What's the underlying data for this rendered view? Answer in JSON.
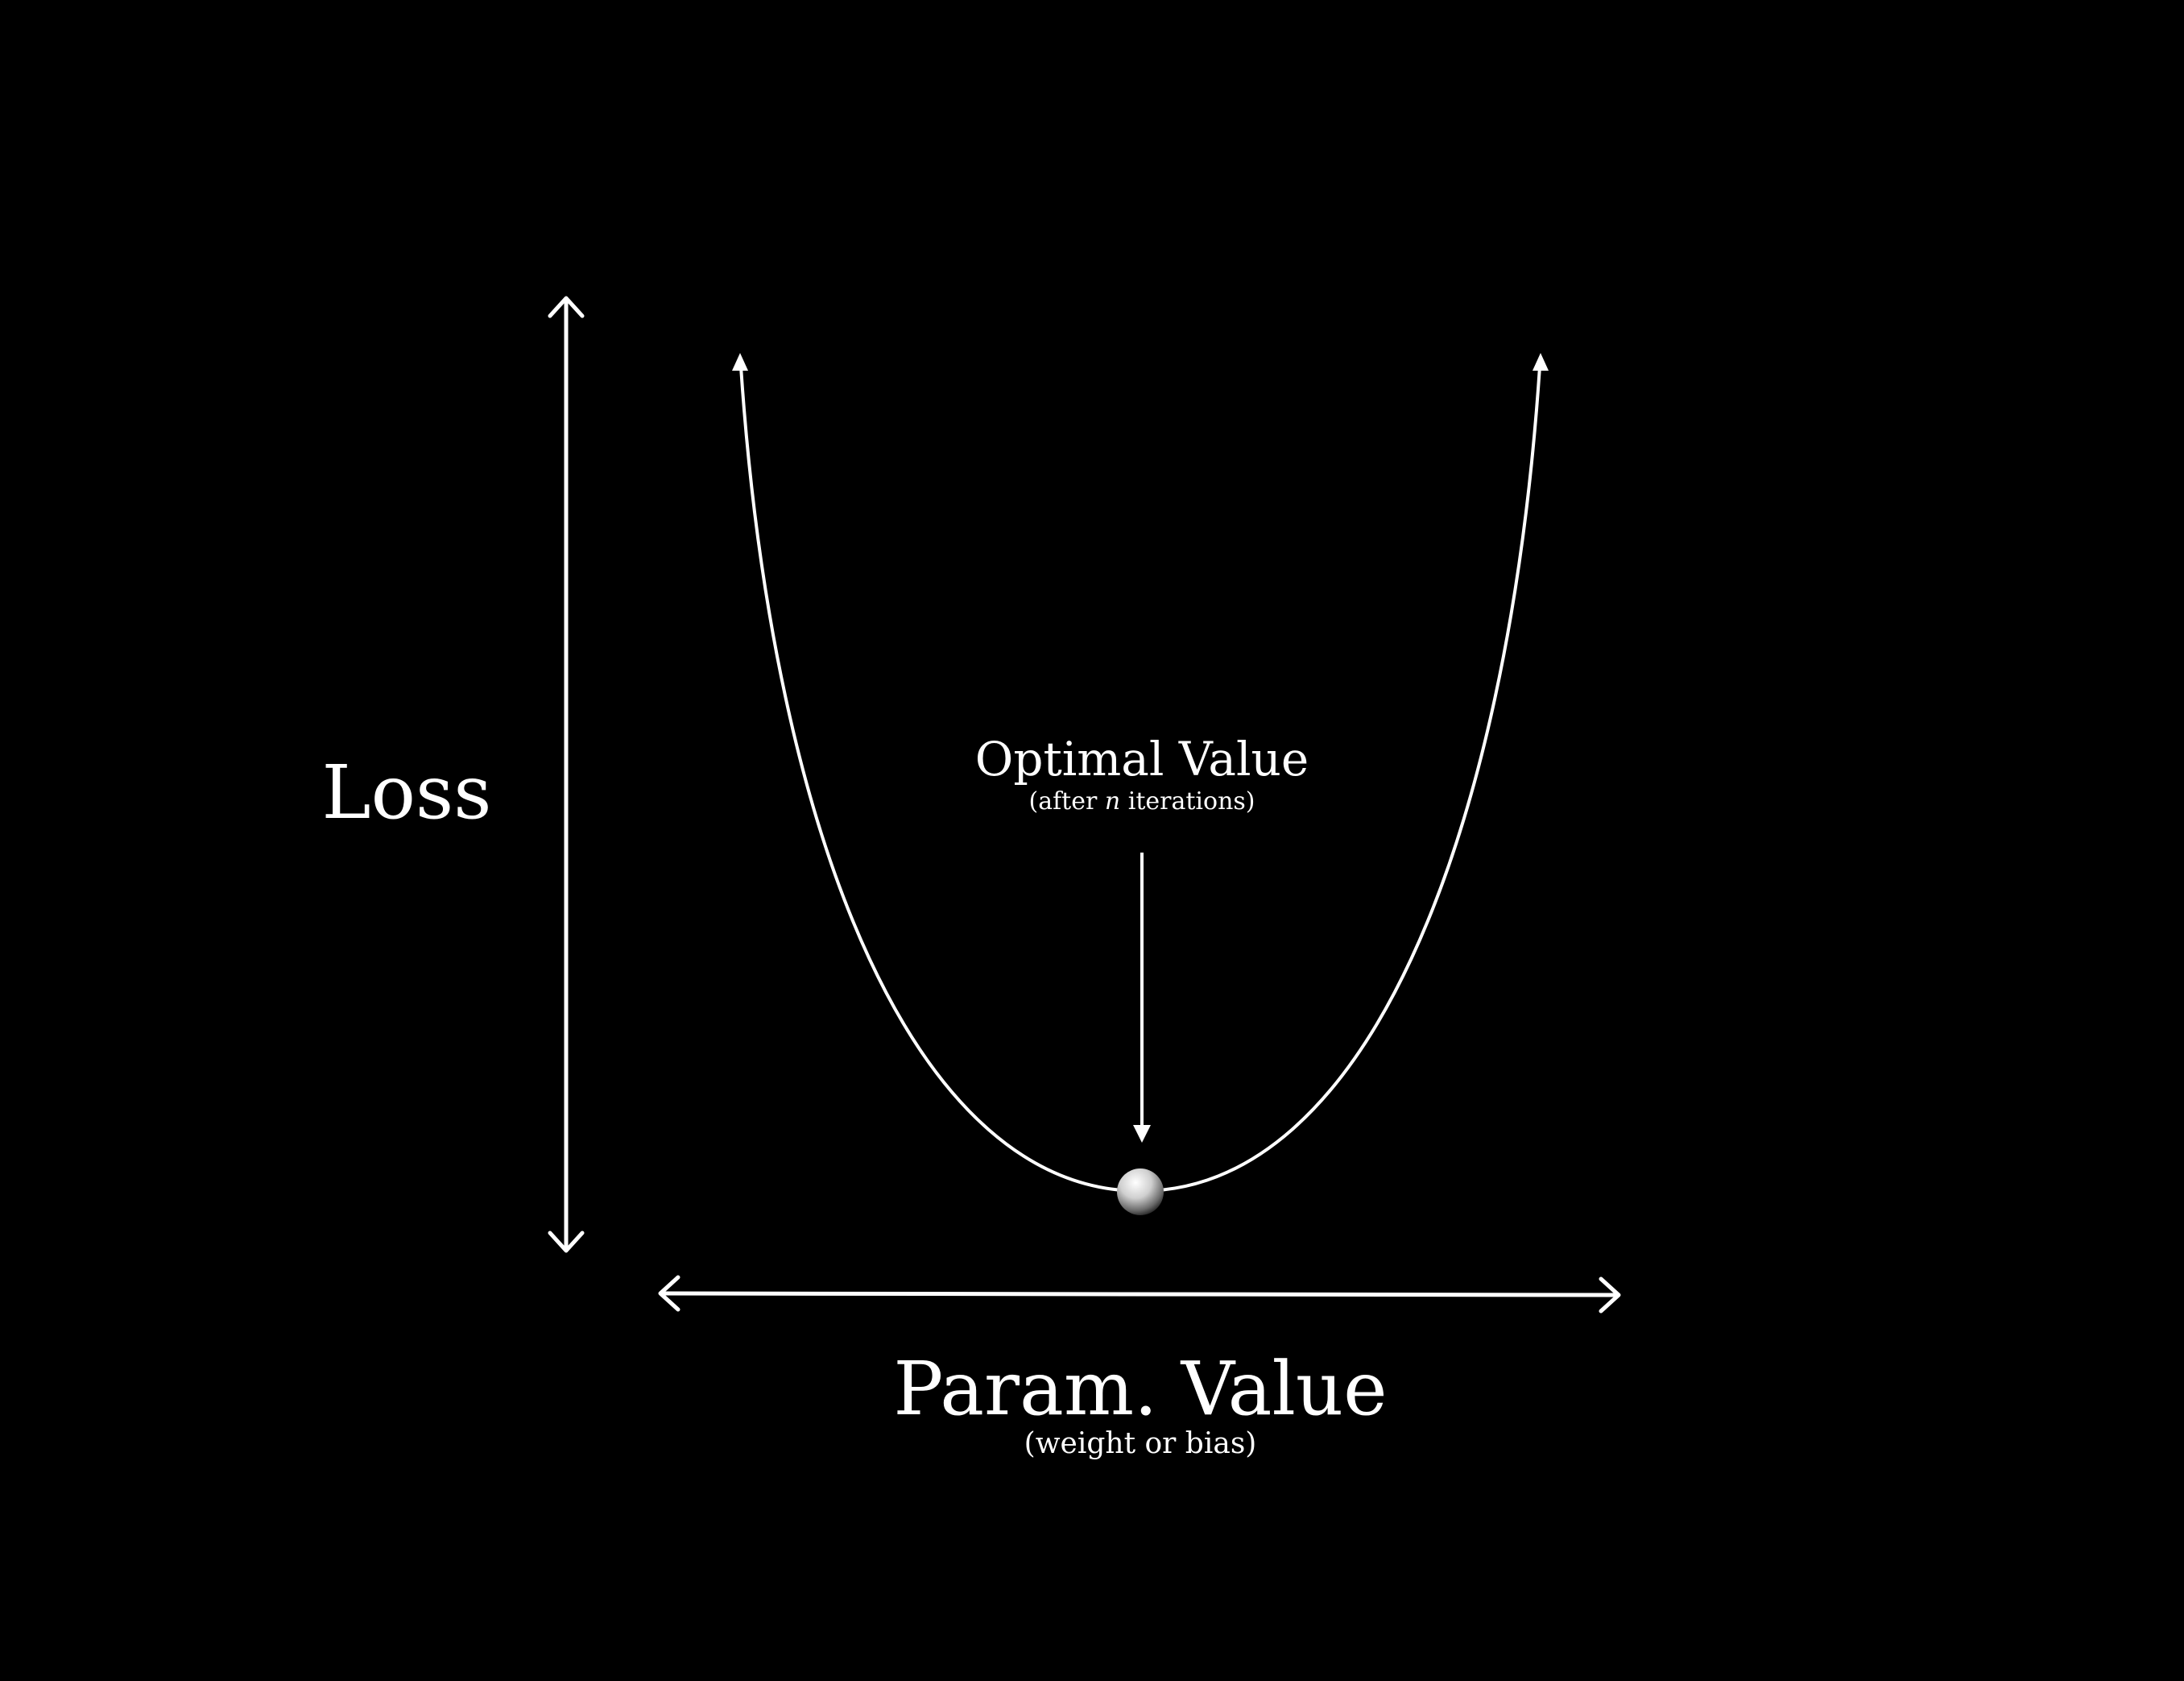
{
  "diagram": {
    "background_color": "#000000",
    "foreground_color": "#ffffff",
    "y_axis": {
      "label": "Loss"
    },
    "x_axis": {
      "label": "Param. Value",
      "sublabel": "(weight or bias)"
    },
    "curve": {
      "shape": "parabola (U-shaped loss curve)",
      "ends": "arrowheads pointing up"
    },
    "minimum_marker": {
      "icon": "sphere-ball-icon",
      "callout_title": "Optimal Value",
      "callout_sub_prefix": "(after ",
      "callout_sub_var": "n",
      "callout_sub_suffix": " iterations)"
    }
  }
}
